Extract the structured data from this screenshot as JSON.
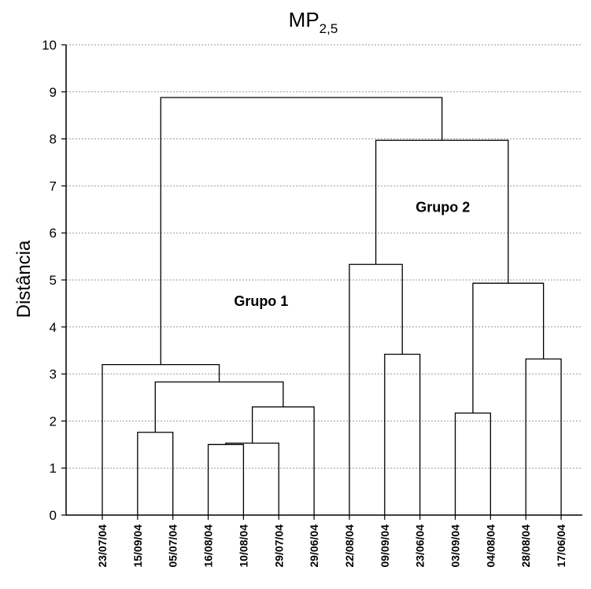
{
  "chart_data": {
    "type": "dendrogram",
    "title": {
      "main": "MP",
      "subscript": "2,5"
    },
    "ylabel": "Distância",
    "xlabel": "",
    "ylim": [
      0,
      10
    ],
    "yticks": [
      0,
      1,
      2,
      3,
      4,
      5,
      6,
      7,
      8,
      9,
      10
    ],
    "grid": {
      "horizontal": true,
      "style": "dotted"
    },
    "leaves": [
      "23/07/04",
      "15/09/04",
      "05/07/04",
      "16/08/04",
      "10/08/04",
      "29/07/04",
      "29/06/04",
      "22/08/04",
      "09/09/04",
      "23/06/04",
      "03/09/04",
      "04/08/04",
      "28/08/04",
      "17/06/04"
    ],
    "merges": [
      {
        "id": "m1",
        "left": 3,
        "right": 4,
        "height": 1.5
      },
      {
        "id": "m2",
        "left": "m1",
        "right": 5,
        "height": 1.53
      },
      {
        "id": "m3",
        "left": 1,
        "right": 2,
        "height": 1.76
      },
      {
        "id": "m4",
        "left": 10,
        "right": 11,
        "height": 2.17
      },
      {
        "id": "m5",
        "left": "m2",
        "right": 6,
        "height": 2.3
      },
      {
        "id": "m6",
        "left": "m3",
        "right": "m5",
        "height": 2.83
      },
      {
        "id": "m7",
        "left": 0,
        "right": "m6",
        "height": 3.2
      },
      {
        "id": "m8",
        "left": 12,
        "right": 13,
        "height": 3.32
      },
      {
        "id": "m9",
        "left": 8,
        "right": 9,
        "height": 3.42
      },
      {
        "id": "m10",
        "left": "m4",
        "right": "m8",
        "height": 4.93
      },
      {
        "id": "m11",
        "left": 7,
        "right": "m9",
        "height": 5.33
      },
      {
        "id": "m12",
        "left": "m11",
        "right": "m10",
        "height": 7.97
      },
      {
        "id": "m13",
        "left": "m7",
        "right": "m12",
        "height": 8.88
      }
    ],
    "annotations": [
      {
        "text": "Grupo 1",
        "x_leaf": 4.5,
        "y": 4.45
      },
      {
        "text": "Grupo 2",
        "x_leaf": 9.65,
        "y": 6.45
      }
    ],
    "colors": {
      "line": "#000000",
      "grid": "#9a9a9a",
      "background": "#ffffff"
    }
  }
}
